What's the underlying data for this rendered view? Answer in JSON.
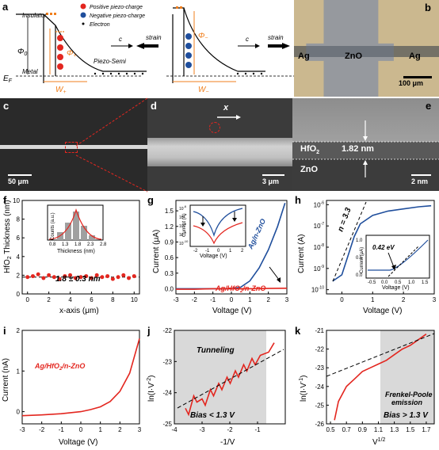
{
  "panels": {
    "a": {
      "label": "a",
      "legend": [
        "Positive piezo-charge",
        "Negative piezo-charge",
        "Electron"
      ],
      "insulator": "Insulator",
      "metal": "Metal",
      "ef": "E",
      "ef_sub": "F",
      "phi0": "Φ",
      "phi0_sub": "0",
      "phi_plus": "Φ",
      "phi_plus_sub": "+",
      "phi_minus": "Φ",
      "phi_minus_sub": "−",
      "w_plus": "W",
      "w_plus_sub": "+",
      "w_minus": "W",
      "w_minus_sub": "−",
      "c": "c",
      "strain": "strain",
      "piezo_semi": "Piezo-Semi"
    },
    "b": {
      "label": "b",
      "left": "Ag",
      "mid": "ZnO",
      "right": "Ag",
      "scale": "100 μm"
    },
    "c": {
      "label": "c",
      "scale": "50 μm"
    },
    "d": {
      "label": "d",
      "x": "x",
      "scale": "3 μm"
    },
    "e": {
      "label": "e",
      "layer1": "HfO",
      "layer1_sub": "2",
      "thickness": "1.82 nm",
      "layer2": "ZnO",
      "scale": "2 nm"
    },
    "f": {
      "label": "f",
      "ylabel": "HfO",
      "ylabel_sub": "2",
      "ylabel_rest": " Thickness (nm)",
      "xlabel": "x-axis (μm)",
      "annot": "1.8 ± 0.3 nm",
      "inset_ylabel": "Counts (a.u.)",
      "inset_xlabel": "Thickness (nm)"
    },
    "g": {
      "label": "g",
      "ylabel": "Current (μA)",
      "xlabel": "Voltage (V)",
      "series1": "Ag/n-ZnO",
      "series2": "Ag/HfO",
      "series2_sub": "2",
      "series2_rest": "/n-ZnO",
      "inset_ylabel": "Current (A)",
      "inset_xlabel": "Voltage (V)"
    },
    "h": {
      "label": "h",
      "ylabel": "Current (A)",
      "xlabel": "Voltage (V)",
      "n_annot": "n = 3.3",
      "inset_ylabel": "Current (μA)",
      "inset_xlabel": "Voltage (V)",
      "inset_annot": "0.42 eV"
    },
    "i": {
      "label": "i",
      "ylabel": "Current (nA)",
      "xlabel": "Voltage (V)",
      "series": "Ag/HfO",
      "series_sub": "2",
      "series_rest": "/n-ZnO"
    },
    "j": {
      "label": "j",
      "ylabel": "ln(I·V",
      "ylabel_sup": "-2",
      "ylabel_rest": ")",
      "xlabel": "-1/V",
      "annot1": "Tunneling",
      "annot2": "Bias < 1.3 V"
    },
    "k": {
      "label": "k",
      "ylabel": "ln(I·V",
      "ylabel_sup": "-1",
      "ylabel_rest": ")",
      "xlabel": "V",
      "xlabel_sup": "1/2",
      "annot1": "Frenkel-Poole",
      "annot1b": "emission",
      "annot2": "Bias > 1.3 V"
    }
  },
  "colors": {
    "red": "#e3261f",
    "blue": "#1f4e9c",
    "orange": "#f07f1d",
    "gray": "#d9d9d9"
  },
  "chart_data": [
    {
      "type": "scatter",
      "panel": "f",
      "x": [
        0,
        0.5,
        1,
        1.5,
        2,
        2.5,
        3,
        3.5,
        4,
        4.5,
        5,
        5.5,
        6,
        6.5,
        7,
        7.5,
        8,
        8.5,
        9,
        9.5,
        10
      ],
      "y": [
        1.8,
        1.9,
        2.1,
        1.7,
        2.0,
        1.8,
        1.6,
        1.9,
        2.0,
        1.7,
        1.8,
        1.9,
        1.7,
        2.0,
        1.8,
        1.9,
        1.6,
        1.8,
        2.0,
        1.7,
        1.9
      ],
      "xlim": [
        -0.5,
        10.5
      ],
      "ylim": [
        0,
        10
      ],
      "xticks": [
        0,
        2,
        4,
        6,
        8,
        10
      ],
      "yticks": [
        0,
        2,
        4,
        6,
        8,
        10
      ],
      "inset": {
        "type": "bar",
        "x": [
          0.8,
          1.3,
          1.8,
          2.3,
          2.8
        ],
        "xticks": [
          0.8,
          1.3,
          1.8,
          2.3,
          2.8
        ]
      }
    },
    {
      "type": "line",
      "panel": "g",
      "xlim": [
        -3,
        3
      ],
      "ylim": [
        -0.1,
        1.7
      ],
      "xticks": [
        -3,
        -2,
        -1,
        0,
        1,
        2,
        3
      ],
      "yticks": [
        0.0,
        0.3,
        0.6,
        0.9,
        1.2,
        1.5
      ],
      "series": [
        {
          "name": "Ag/n-ZnO",
          "x": [
            -3,
            -2,
            -1,
            0,
            0.5,
            1,
            1.5,
            2,
            2.5,
            2.9
          ],
          "y": [
            0,
            0,
            0,
            0,
            0.03,
            0.15,
            0.4,
            0.75,
            1.2,
            1.65
          ]
        },
        {
          "name": "Ag/HfO2/n-ZnO",
          "x": [
            -3,
            -2,
            -1,
            0,
            1,
            2,
            3
          ],
          "y": [
            -0.01,
            -0.01,
            0,
            0,
            0,
            0.005,
            0.01
          ]
        }
      ],
      "inset": {
        "xticks": [
          -2,
          -1,
          0,
          1,
          2
        ],
        "yticks_exp": [
          -10,
          -9,
          -8,
          -7,
          -6
        ]
      }
    },
    {
      "type": "line",
      "panel": "h",
      "xlim": [
        -0.5,
        3
      ],
      "yscale": "log",
      "xticks": [
        0,
        1,
        2,
        3
      ],
      "yticks_exp": [
        -10,
        -9,
        -8,
        -7,
        -6
      ],
      "series": [
        {
          "name": "Ag/n-ZnO",
          "x": [
            -0.3,
            0,
            0.2,
            0.4,
            0.6,
            1,
            1.5,
            2,
            2.5,
            2.9
          ],
          "y_exp": [
            -9.6,
            -9.3,
            -8.4,
            -7.5,
            -6.9,
            -6.5,
            -6.3,
            -6.2,
            -6.1,
            -6.05
          ]
        }
      ],
      "inset": {
        "xticks": [
          -0.5,
          0.0,
          0.5,
          1.0,
          1.5
        ],
        "yticks": [
          0.0,
          0.5,
          1.0
        ]
      }
    },
    {
      "type": "line",
      "panel": "i",
      "xlim": [
        -3,
        3
      ],
      "ylim": [
        -0.3,
        2
      ],
      "xticks": [
        -3,
        -2,
        -1,
        0,
        1,
        2,
        3
      ],
      "yticks": [
        0,
        1,
        2
      ],
      "series": [
        {
          "name": "Ag/HfO2/n-ZnO",
          "x": [
            -3,
            -2,
            -1,
            0,
            0.5,
            1,
            1.5,
            2,
            2.5,
            3
          ],
          "y": [
            -0.1,
            -0.08,
            -0.05,
            0,
            0.05,
            0.12,
            0.25,
            0.5,
            0.95,
            1.8
          ]
        }
      ]
    },
    {
      "type": "line",
      "panel": "j",
      "xlim": [
        -4,
        0
      ],
      "ylim": [
        -25,
        -22
      ],
      "xticks": [
        -4,
        -3,
        -2,
        -1
      ],
      "yticks": [
        -25,
        -24,
        -23,
        -22
      ],
      "series": [
        {
          "name": "",
          "x": [
            -3.6,
            -3.3,
            -3.0,
            -2.7,
            -2.4,
            -2.1,
            -1.8,
            -1.5,
            -1.2,
            -0.9,
            -0.6,
            -0.4
          ],
          "y": [
            -24.5,
            -24.1,
            -24.2,
            -23.9,
            -23.7,
            -23.5,
            -23.3,
            -23.1,
            -22.9,
            -22.8,
            -22.7,
            -22.4
          ]
        }
      ]
    },
    {
      "type": "line",
      "panel": "k",
      "xlim": [
        0.45,
        1.8
      ],
      "ylim": [
        -26,
        -21
      ],
      "xticks": [
        0.5,
        0.7,
        0.9,
        1.1,
        1.3,
        1.5,
        1.7
      ],
      "yticks": [
        -26,
        -25,
        -24,
        -23,
        -22,
        -21
      ],
      "series": [
        {
          "name": "",
          "x": [
            0.55,
            0.6,
            0.7,
            0.8,
            0.9,
            1.0,
            1.1,
            1.2,
            1.3,
            1.4,
            1.5,
            1.6,
            1.7
          ],
          "y": [
            -25.8,
            -24.8,
            -24.0,
            -23.6,
            -23.2,
            -23.0,
            -22.8,
            -22.6,
            -22.3,
            -22.0,
            -21.8,
            -21.5,
            -21.2
          ]
        }
      ]
    }
  ]
}
